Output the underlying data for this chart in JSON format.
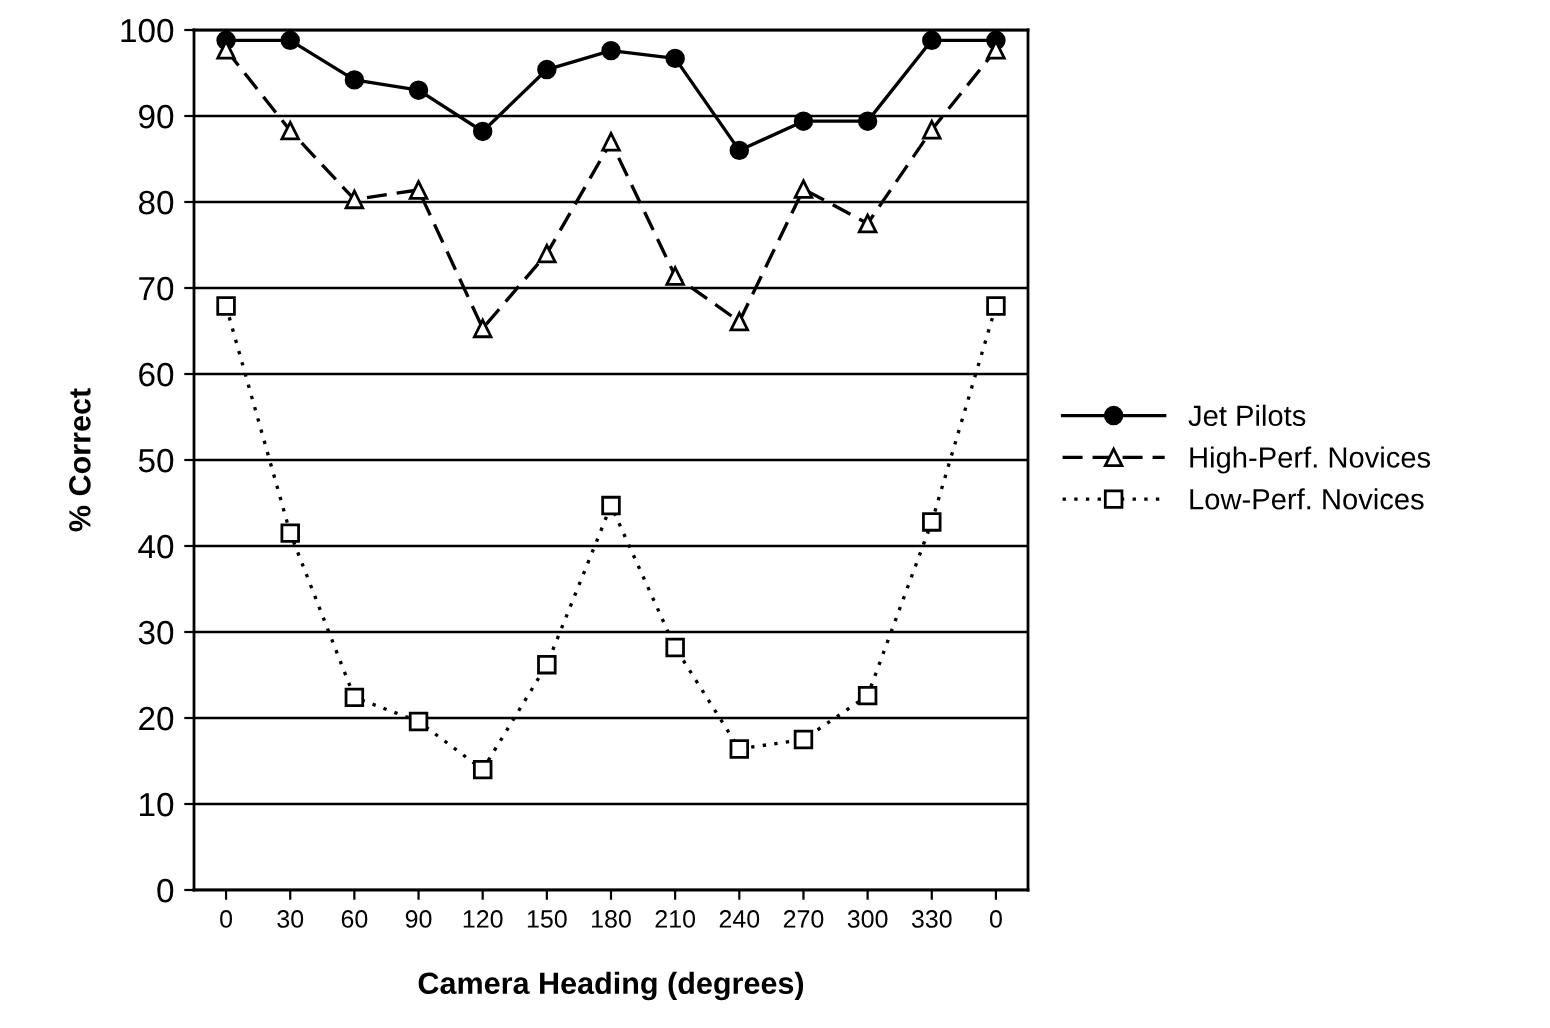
{
  "chart_data": {
    "type": "line",
    "xlabel": "Camera Heading (degrees)",
    "ylabel": "% Correct",
    "categories": [
      "0",
      "30",
      "60",
      "90",
      "120",
      "150",
      "180",
      "210",
      "240",
      "270",
      "300",
      "330",
      "0"
    ],
    "series": [
      {
        "name": "Jet Pilots",
        "color": "#000000",
        "marker": "circle",
        "line_style": "solid",
        "values": [
          98.8,
          98.8,
          94.2,
          93.0,
          88.2,
          95.4,
          97.6,
          96.7,
          86.0,
          89.4,
          89.4,
          98.8,
          98.8
        ]
      },
      {
        "name": "High-Perf. Novices",
        "color": "#000000",
        "marker": "triangle",
        "line_style": "dashed",
        "values": [
          97.7,
          88.3,
          80.3,
          81.4,
          65.3,
          74.0,
          87.0,
          71.4,
          66.1,
          81.5,
          77.5,
          88.4,
          97.7
        ]
      },
      {
        "name": "Low-Perf. Novices",
        "color": "#000000",
        "marker": "square",
        "line_style": "dotted",
        "values": [
          67.9,
          41.5,
          22.4,
          19.6,
          14.0,
          26.2,
          44.7,
          28.2,
          16.4,
          17.5,
          22.6,
          42.8,
          67.9
        ]
      }
    ],
    "ylim": [
      0,
      100
    ],
    "yticks": [
      0,
      10,
      20,
      30,
      40,
      50,
      60,
      70,
      80,
      90,
      100
    ],
    "grid": "y",
    "legend": "right"
  }
}
